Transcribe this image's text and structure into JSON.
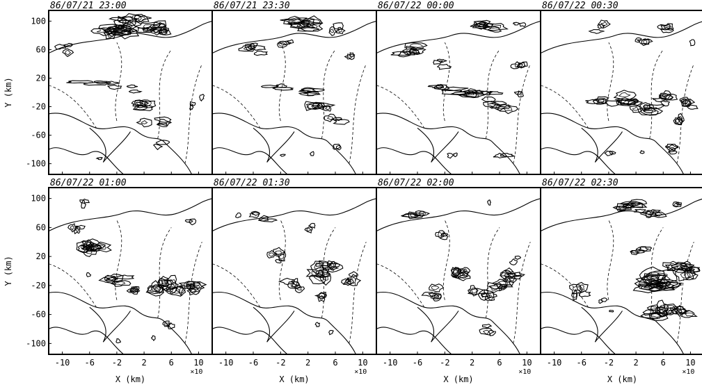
{
  "chart_data": {
    "type": "radar-contour-panels",
    "xlabel": "X (km)",
    "ylabel": "Y (km)",
    "x_multiplier": "×10",
    "x_ticks": [
      -10,
      -6,
      -2,
      2,
      6,
      10
    ],
    "y_ticks": [
      100,
      60,
      20,
      -20,
      -60,
      -100
    ],
    "xlim": [
      -12,
      12
    ],
    "ylim": [
      -115,
      115
    ],
    "panels": [
      {
        "timestamp": "86/07/21 23:00",
        "echo_cells": [
          [
            -9.5,
            62,
            1.5,
            9
          ],
          [
            -5,
            15,
            3.5,
            5
          ],
          [
            -1,
            5,
            2.2,
            6
          ],
          [
            1.5,
            -18,
            2.2,
            9
          ],
          [
            3.5,
            -40,
            2.2,
            8
          ],
          [
            -2,
            85,
            3,
            10
          ],
          [
            0.5,
            98,
            3,
            10
          ],
          [
            3.5,
            92,
            2,
            9
          ],
          [
            5.5,
            85,
            1.5,
            8
          ],
          [
            9,
            -20,
            0.8,
            8
          ],
          [
            -5,
            -95,
            1,
            4
          ],
          [
            4.8,
            -72,
            1.5,
            6
          ],
          [
            10,
            -5,
            0.7,
            6
          ]
        ]
      },
      {
        "timestamp": "86/07/21 23:30",
        "echo_cells": [
          [
            -6,
            60,
            2,
            10
          ],
          [
            -1.5,
            70,
            1.5,
            7
          ],
          [
            2,
            95,
            3,
            10
          ],
          [
            6,
            90,
            1.5,
            8
          ],
          [
            8,
            50,
            1,
            7
          ],
          [
            -3,
            8,
            2.5,
            5
          ],
          [
            1,
            0,
            2.5,
            6
          ],
          [
            3.5,
            -20,
            2,
            9
          ],
          [
            6,
            -40,
            1.5,
            8
          ],
          [
            -2,
            -85,
            1,
            5
          ],
          [
            2,
            -85,
            1,
            5
          ],
          [
            6.5,
            -80,
            1,
            6
          ]
        ]
      },
      {
        "timestamp": "86/07/22 00:00",
        "echo_cells": [
          [
            -7,
            60,
            2.5,
            10
          ],
          [
            -2.5,
            40,
            1.5,
            7
          ],
          [
            4,
            92,
            2.5,
            9
          ],
          [
            9,
            98,
            1,
            6
          ],
          [
            8.5,
            40,
            1.5,
            7
          ],
          [
            -3,
            5,
            2,
            5
          ],
          [
            0.5,
            0,
            3,
            7
          ],
          [
            3.5,
            -5,
            2.5,
            8
          ],
          [
            6,
            -20,
            2,
            8
          ],
          [
            8,
            -5,
            1.5,
            6
          ],
          [
            -1,
            -90,
            1.2,
            6
          ],
          [
            7,
            -85,
            1.5,
            6
          ]
        ]
      },
      {
        "timestamp": "86/07/22 00:30",
        "echo_cells": [
          [
            -3,
            90,
            1.5,
            9
          ],
          [
            3,
            70,
            1.5,
            8
          ],
          [
            7,
            90,
            1.5,
            8
          ],
          [
            10.5,
            70,
            0.6,
            7
          ],
          [
            -4,
            -10,
            1.5,
            8
          ],
          [
            0,
            -10,
            2.5,
            9
          ],
          [
            3.5,
            -20,
            2.5,
            10
          ],
          [
            6.5,
            -10,
            2,
            9
          ],
          [
            9.5,
            -15,
            1.5,
            10
          ],
          [
            9,
            -40,
            1.5,
            8
          ],
          [
            -2,
            -85,
            1.2,
            6
          ],
          [
            3.5,
            -82,
            1,
            5
          ],
          [
            7.5,
            -80,
            1.5,
            7
          ]
        ]
      },
      {
        "timestamp": "86/07/22 01:00",
        "echo_cells": [
          [
            -7,
            95,
            1,
            9
          ],
          [
            -8,
            60,
            1.5,
            8
          ],
          [
            -6,
            30,
            2.5,
            12
          ],
          [
            -2,
            -12,
            2,
            10
          ],
          [
            1.5,
            -25,
            1.5,
            8
          ],
          [
            5,
            -20,
            2.5,
            14
          ],
          [
            8.5,
            -20,
            2,
            12
          ],
          [
            6,
            -75,
            1,
            6
          ],
          [
            -2,
            -95,
            1,
            5
          ],
          [
            3.5,
            -95,
            1,
            5
          ],
          [
            8.5,
            70,
            1,
            6
          ],
          [
            -6,
            -3,
            0.6,
            6
          ]
        ]
      },
      {
        "timestamp": "86/07/22 01:30",
        "echo_cells": [
          [
            -5,
            75,
            2,
            8
          ],
          [
            -2.5,
            20,
            1.5,
            10
          ],
          [
            0,
            -20,
            1.5,
            10
          ],
          [
            3.5,
            -35,
            1.5,
            8
          ],
          [
            5,
            0,
            2.5,
            14
          ],
          [
            8,
            -10,
            1.5,
            10
          ],
          [
            3,
            -75,
            0.8,
            6
          ],
          [
            5.5,
            -85,
            0.8,
            5
          ],
          [
            2,
            60,
            1,
            7
          ],
          [
            -8,
            75,
            0.8,
            5
          ]
        ]
      },
      {
        "timestamp": "86/07/22 02:00",
        "echo_cells": [
          [
            -6,
            75,
            2,
            8
          ],
          [
            -2,
            45,
            1.5,
            8
          ],
          [
            1,
            0,
            2,
            12
          ],
          [
            3.5,
            -30,
            2,
            10
          ],
          [
            6,
            -15,
            2,
            12
          ],
          [
            8,
            -5,
            2,
            8
          ],
          [
            -4,
            -30,
            1.5,
            10
          ],
          [
            5,
            -80,
            1.5,
            8
          ],
          [
            5,
            93,
            0.8,
            6
          ],
          [
            8.5,
            15,
            1,
            6
          ]
        ]
      },
      {
        "timestamp": "86/07/22 02:30",
        "echo_cells": [
          [
            1,
            90,
            2.5,
            10
          ],
          [
            4,
            80,
            2,
            9
          ],
          [
            8,
            95,
            1,
            6
          ],
          [
            3,
            30,
            2,
            8
          ],
          [
            5,
            -15,
            3.5,
            14
          ],
          [
            8.5,
            0,
            2.5,
            12
          ],
          [
            5.5,
            -55,
            2.5,
            12
          ],
          [
            8.5,
            -60,
            2,
            10
          ],
          [
            -6,
            -30,
            1.5,
            10
          ],
          [
            -3,
            -40,
            1,
            6
          ],
          [
            -1.5,
            -55,
            0.5,
            4
          ]
        ]
      }
    ]
  }
}
